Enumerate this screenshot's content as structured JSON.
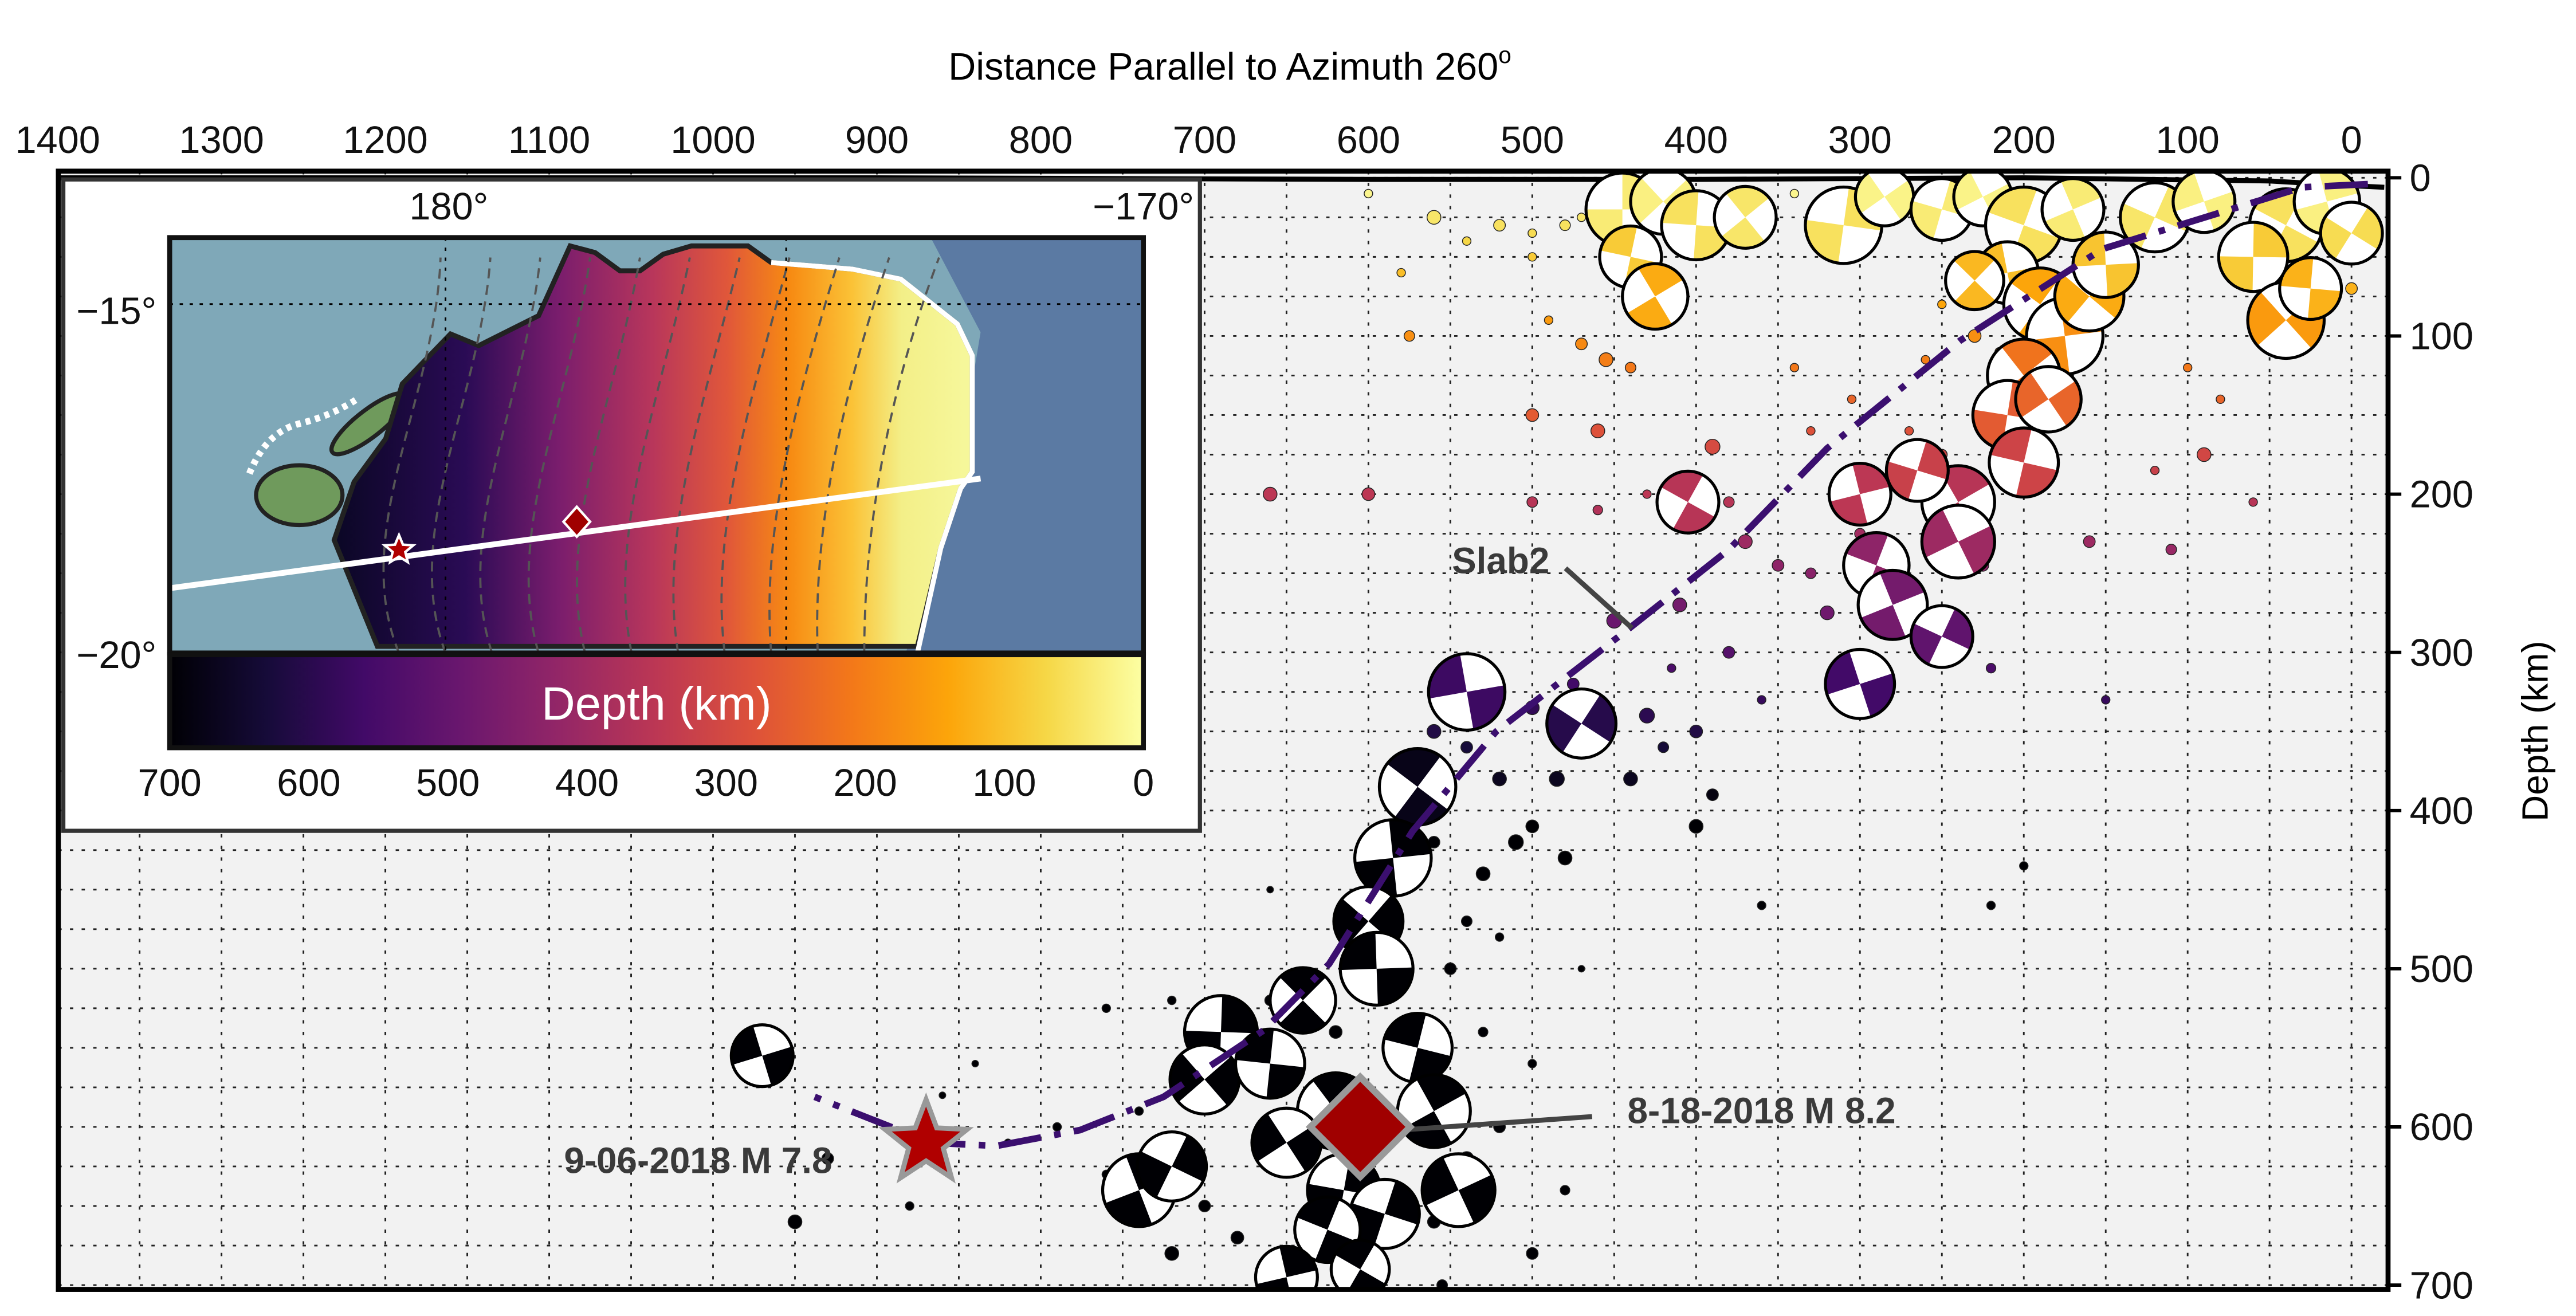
{
  "chart_data": {
    "type": "scatter",
    "title": "Distance Parallel to Azimuth 260",
    "title_superscript": "o",
    "xlabel": "Distance Parallel to Azimuth 260°",
    "ylabel": "Depth (km)",
    "xlim": [
      1400,
      -20
    ],
    "ylim": [
      700,
      0
    ],
    "x_ticks": [
      1400,
      1300,
      1200,
      1100,
      1000,
      900,
      800,
      700,
      600,
      500,
      400,
      300,
      200,
      100,
      0
    ],
    "y_ticks": [
      0,
      100,
      200,
      300,
      400,
      500,
      600,
      700
    ],
    "grid": true,
    "x_grid_step": 50,
    "y_grid_step": 25,
    "color_by": "depth",
    "colormap": "inferno",
    "colormap_stops": [
      "#000004",
      "#160b39",
      "#420a68",
      "#6a176e",
      "#932667",
      "#bc3754",
      "#dd513a",
      "#f37819",
      "#fca50a",
      "#f6d746",
      "#fcffa4"
    ],
    "surface_line": [
      [
        1400,
        0
      ],
      [
        900,
        0
      ],
      [
        600,
        1
      ],
      [
        400,
        1
      ],
      [
        200,
        0
      ],
      [
        50,
        2
      ],
      [
        0,
        5
      ],
      [
        -20,
        6
      ]
    ],
    "slab2_line": {
      "label": "Slab2",
      "color": "#3b0f6f",
      "points": [
        [
          -10,
          4
        ],
        [
          30,
          6
        ],
        [
          152,
          45
        ],
        [
          239,
          103
        ],
        [
          320,
          171
        ],
        [
          380,
          235
        ],
        [
          441,
          285
        ],
        [
          522,
          350
        ],
        [
          573,
          413
        ],
        [
          624,
          497
        ],
        [
          664,
          539
        ],
        [
          725,
          581
        ],
        [
          776,
          602
        ],
        [
          827,
          612
        ],
        [
          867,
          610
        ],
        [
          938,
          581
        ]
      ]
    },
    "focal_mechanisms": [
      [
        445,
        20,
        6.9
      ],
      [
        420,
        15,
        6.7
      ],
      [
        400,
        30,
        6.8
      ],
      [
        370,
        25,
        6.6
      ],
      [
        310,
        30,
        7.0
      ],
      [
        285,
        12,
        6.5
      ],
      [
        440,
        50,
        6.6
      ],
      [
        425,
        75,
        6.7
      ],
      [
        250,
        20,
        6.6
      ],
      [
        225,
        12,
        6.5
      ],
      [
        200,
        30,
        7.0
      ],
      [
        170,
        20,
        6.6
      ],
      [
        120,
        25,
        6.8
      ],
      [
        90,
        15,
        6.6
      ],
      [
        40,
        30,
        6.9
      ],
      [
        15,
        15,
        6.7
      ],
      [
        0,
        35,
        6.6
      ],
      [
        210,
        60,
        6.6
      ],
      [
        190,
        80,
        6.9
      ],
      [
        175,
        100,
        7.0
      ],
      [
        160,
        75,
        6.8
      ],
      [
        150,
        55,
        6.7
      ],
      [
        230,
        65,
        6.5
      ],
      [
        60,
        50,
        6.8
      ],
      [
        40,
        90,
        7.0
      ],
      [
        25,
        70,
        6.6
      ],
      [
        200,
        125,
        6.9
      ],
      [
        210,
        150,
        6.8
      ],
      [
        185,
        140,
        6.7
      ],
      [
        200,
        180,
        6.8
      ],
      [
        240,
        205,
        6.9
      ],
      [
        265,
        185,
        6.6
      ],
      [
        240,
        230,
        6.9
      ],
      [
        290,
        245,
        6.7
      ],
      [
        280,
        270,
        6.8
      ],
      [
        250,
        290,
        6.6
      ],
      [
        300,
        320,
        6.8
      ],
      [
        405,
        205,
        6.6
      ],
      [
        300,
        200,
        6.6
      ],
      [
        470,
        345,
        6.8
      ],
      [
        540,
        325,
        7.0
      ],
      [
        570,
        385,
        7.0
      ],
      [
        585,
        430,
        7.0
      ],
      [
        600,
        470,
        6.8
      ],
      [
        595,
        500,
        6.9
      ],
      [
        640,
        520,
        6.7
      ],
      [
        690,
        540,
        6.9
      ],
      [
        700,
        570,
        6.8
      ],
      [
        660,
        560,
        6.8
      ],
      [
        620,
        590,
        7.0
      ],
      [
        615,
        640,
        6.9
      ],
      [
        650,
        610,
        6.8
      ],
      [
        570,
        550,
        6.8
      ],
      [
        560,
        590,
        6.9
      ],
      [
        590,
        655,
        6.8
      ],
      [
        545,
        640,
        6.9
      ],
      [
        625,
        665,
        6.7
      ],
      [
        740,
        640,
        6.9
      ],
      [
        720,
        625,
        6.8
      ],
      [
        970,
        555,
        6.6
      ],
      [
        605,
        690,
        6.5
      ],
      [
        650,
        695,
        6.6
      ]
    ],
    "events": [
      [
        470,
        25,
        5
      ],
      [
        480,
        30,
        5.2
      ],
      [
        500,
        35,
        5
      ],
      [
        520,
        30,
        5.3
      ],
      [
        540,
        40,
        5
      ],
      [
        560,
        25,
        5.5
      ],
      [
        600,
        10,
        5
      ],
      [
        790,
        5,
        5.5
      ],
      [
        960,
        5,
        5.5
      ],
      [
        580,
        60,
        5
      ],
      [
        500,
        50,
        5
      ],
      [
        340,
        10,
        5
      ],
      [
        575,
        100,
        5.2
      ],
      [
        490,
        90,
        5
      ],
      [
        470,
        105,
        5.3
      ],
      [
        455,
        115,
        5.5
      ],
      [
        440,
        120,
        5.2
      ],
      [
        420,
        90,
        5
      ],
      [
        340,
        120,
        5
      ],
      [
        305,
        140,
        5
      ],
      [
        250,
        80,
        5
      ],
      [
        230,
        100,
        5.4
      ],
      [
        215,
        110,
        5
      ],
      [
        180,
        110,
        5
      ],
      [
        100,
        120,
        5
      ],
      [
        80,
        140,
        5
      ],
      [
        45,
        110,
        5.5
      ],
      [
        0,
        70,
        5.3
      ],
      [
        260,
        115,
        5
      ],
      [
        500,
        150,
        5.4
      ],
      [
        460,
        160,
        5.5
      ],
      [
        390,
        170,
        5.6
      ],
      [
        330,
        160,
        5
      ],
      [
        270,
        160,
        5
      ],
      [
        250,
        175,
        5.2
      ],
      [
        290,
        190,
        5.5
      ],
      [
        300,
        225,
        5.2
      ],
      [
        160,
        230,
        5.3
      ],
      [
        120,
        185,
        5
      ],
      [
        90,
        175,
        5.5
      ],
      [
        60,
        205,
        5
      ],
      [
        600,
        200,
        5.4
      ],
      [
        500,
        205,
        5.2
      ],
      [
        460,
        210,
        5.1
      ],
      [
        430,
        200,
        5
      ],
      [
        380,
        205,
        5.2
      ],
      [
        660,
        200,
        5.5
      ],
      [
        370,
        230,
        5.5
      ],
      [
        350,
        245,
        5.3
      ],
      [
        330,
        250,
        5.2
      ],
      [
        320,
        275,
        5.5
      ],
      [
        260,
        300,
        5.2
      ],
      [
        220,
        310,
        5.1
      ],
      [
        225,
        245,
        5.3
      ],
      [
        110,
        235,
        5.2
      ],
      [
        410,
        270,
        5.5
      ],
      [
        450,
        280,
        5.6
      ],
      [
        415,
        310,
        5
      ],
      [
        465,
        330,
        5.4
      ],
      [
        475,
        320,
        5.3
      ],
      [
        500,
        335,
        5.5
      ],
      [
        520,
        320,
        5.2
      ],
      [
        560,
        350,
        5.5
      ],
      [
        380,
        300,
        5.3
      ],
      [
        440,
        380,
        5.5
      ],
      [
        420,
        360,
        5.2
      ],
      [
        360,
        330,
        5
      ],
      [
        400,
        350,
        5.4
      ],
      [
        430,
        340,
        5.6
      ],
      [
        390,
        390,
        5.3
      ],
      [
        400,
        410,
        5.5
      ],
      [
        485,
        380,
        5.6
      ],
      [
        520,
        380,
        5.5
      ],
      [
        540,
        360,
        5.3
      ],
      [
        500,
        410,
        5.4
      ],
      [
        660,
        450,
        4.8
      ],
      [
        150,
        330,
        5
      ],
      [
        480,
        430,
        5.5
      ],
      [
        510,
        420,
        5.6
      ],
      [
        580,
        450,
        5.4
      ],
      [
        560,
        420,
        5.3
      ],
      [
        530,
        440,
        5.5
      ],
      [
        540,
        470,
        5.2
      ],
      [
        520,
        480,
        5
      ],
      [
        470,
        500,
        4.8
      ],
      [
        550,
        500,
        5.3
      ],
      [
        620,
        540,
        5.4
      ],
      [
        560,
        560,
        5.2
      ],
      [
        530,
        540,
        5.1
      ],
      [
        500,
        560,
        5
      ],
      [
        520,
        600,
        5.3
      ],
      [
        540,
        620,
        5.5
      ],
      [
        560,
        660,
        5.4
      ],
      [
        600,
        680,
        5.2
      ],
      [
        610,
        695,
        5
      ],
      [
        640,
        690,
        5.1
      ],
      [
        680,
        670,
        5.4
      ],
      [
        700,
        650,
        5.3
      ],
      [
        720,
        680,
        5.5
      ],
      [
        760,
        630,
        5
      ],
      [
        790,
        600,
        5
      ],
      [
        740,
        590,
        5
      ],
      [
        840,
        560,
        4.8
      ],
      [
        860,
        580,
        4.7
      ],
      [
        930,
        620,
        5.3
      ],
      [
        950,
        660,
        5.5
      ],
      [
        880,
        650,
        5
      ],
      [
        820,
        610,
        4.9
      ],
      [
        720,
        520,
        5
      ],
      [
        760,
        525,
        5
      ],
      [
        660,
        520,
        5.2
      ],
      [
        600,
        600,
        5.4
      ],
      [
        480,
        640,
        5.1
      ],
      [
        500,
        680,
        5.3
      ],
      [
        360,
        460,
        5
      ],
      [
        220,
        460,
        5
      ],
      [
        200,
        435,
        5
      ],
      [
        555,
        700,
        5.2
      ],
      [
        590,
        720,
        5
      ]
    ],
    "annotations": [
      {
        "text": "Slab2",
        "kind": "label"
      },
      {
        "text": "8-18-2018 M 8.2",
        "distance": 605,
        "depth": 600,
        "symbol": "diamond",
        "color": "#a00000"
      },
      {
        "text": "9-06-2018 M 7.8",
        "distance": 870,
        "depth": 610,
        "symbol": "star",
        "color": "#b00000"
      }
    ]
  },
  "inset": {
    "lon_labels": [
      "180°",
      "−170°"
    ],
    "lat_labels": [
      "−15°",
      "−20°"
    ],
    "colorbar_label": "Depth (km)",
    "colorbar_ticks": [
      "700",
      "600",
      "500",
      "400",
      "300",
      "200",
      "100",
      "0"
    ],
    "colors": {
      "sea": "#7fa8b8",
      "deep_sea": "#5b7aa3",
      "land": "#6f9a5c",
      "profile_line": "#ffffff",
      "star": "#b00000",
      "diamond": "#a00000"
    }
  }
}
